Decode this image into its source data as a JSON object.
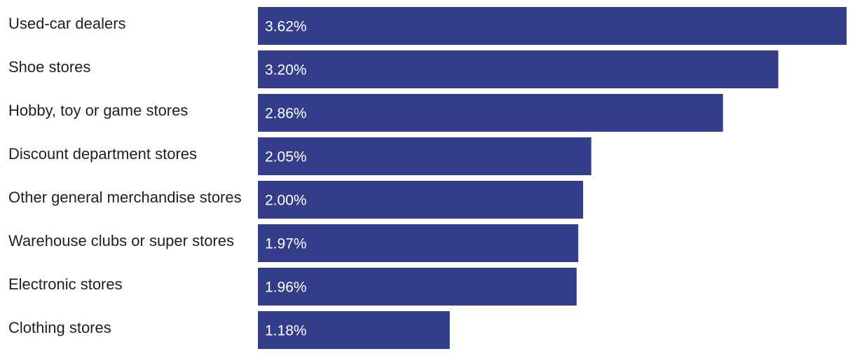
{
  "chart_data": {
    "type": "bar",
    "orientation": "horizontal",
    "categories": [
      "Used-car dealers",
      "Shoe stores",
      "Hobby, toy or game stores",
      "Discount department stores",
      "Other general merchandise stores",
      "Warehouse clubs or super stores",
      "Electronic stores",
      "Clothing stores"
    ],
    "values": [
      3.62,
      3.2,
      2.86,
      2.05,
      2.0,
      1.97,
      1.96,
      1.18
    ],
    "value_labels": [
      "3.62%",
      "3.20%",
      "2.86%",
      "2.05%",
      "2.00%",
      "1.97%",
      "1.96%",
      "1.18%"
    ],
    "xlim": [
      0,
      3.62
    ],
    "grid": false,
    "legend": "none",
    "bar_color": "#333d8a",
    "label_color": "#1f1f1f",
    "value_label_color": "#ffffff"
  }
}
